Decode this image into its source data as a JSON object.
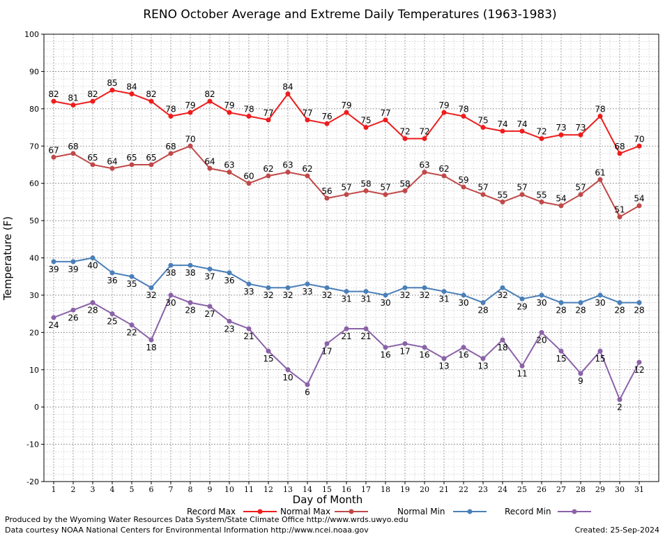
{
  "chart_data": {
    "type": "line",
    "title": "RENO October Average and Extreme Daily Temperatures (1963-1983)",
    "xlabel": "Day of Month",
    "ylabel": "Temperature (F)",
    "ylim": [
      -20,
      100
    ],
    "y_ticks": [
      -20,
      -10,
      0,
      10,
      20,
      30,
      40,
      50,
      60,
      70,
      80,
      90,
      100
    ],
    "categories": [
      1,
      2,
      3,
      4,
      5,
      6,
      7,
      8,
      9,
      10,
      11,
      12,
      13,
      14,
      15,
      16,
      17,
      18,
      19,
      20,
      21,
      22,
      23,
      24,
      25,
      26,
      27,
      28,
      29,
      30,
      31
    ],
    "grid": true,
    "legend_position": "bottom",
    "series": [
      {
        "name": "Record Max",
        "color": "#ee1c1c",
        "values": [
          82,
          81,
          82,
          85,
          84,
          82,
          78,
          79,
          82,
          79,
          78,
          77,
          84,
          77,
          76,
          79,
          75,
          77,
          72,
          72,
          79,
          78,
          75,
          74,
          74,
          72,
          73,
          73,
          78,
          68,
          70
        ]
      },
      {
        "name": "Normal Max",
        "color": "#c04848",
        "values": [
          67,
          68,
          65,
          64,
          65,
          65,
          68,
          70,
          64,
          63,
          60,
          62,
          63,
          62,
          56,
          57,
          58,
          57,
          58,
          63,
          62,
          59,
          57,
          55,
          57,
          55,
          54,
          57,
          61,
          51,
          54
        ]
      },
      {
        "name": "Normal Min",
        "color": "#4a7fb8",
        "values": [
          39,
          39,
          40,
          36,
          35,
          32,
          38,
          38,
          37,
          36,
          33,
          32,
          32,
          33,
          32,
          31,
          31,
          30,
          32,
          32,
          31,
          30,
          28,
          32,
          29,
          30,
          28,
          28,
          30,
          28,
          28
        ]
      },
      {
        "name": "Record Min",
        "color": "#8a62a8",
        "values": [
          24,
          26,
          28,
          25,
          22,
          18,
          30,
          28,
          27,
          23,
          21,
          15,
          10,
          6,
          17,
          21,
          21,
          16,
          17,
          16,
          13,
          16,
          13,
          18,
          11,
          20,
          15,
          9,
          15,
          2,
          12
        ]
      }
    ]
  },
  "footer": {
    "produced_by": "Produced by the Wyoming Water Resources Data System/State Climate Office http://www.wrds.uwyo.edu",
    "data_courtesy": "Data courtesy NOAA National Centers for Environmental Information http://www.ncei.noaa.gov",
    "created": "Created:  25-Sep-2024"
  }
}
